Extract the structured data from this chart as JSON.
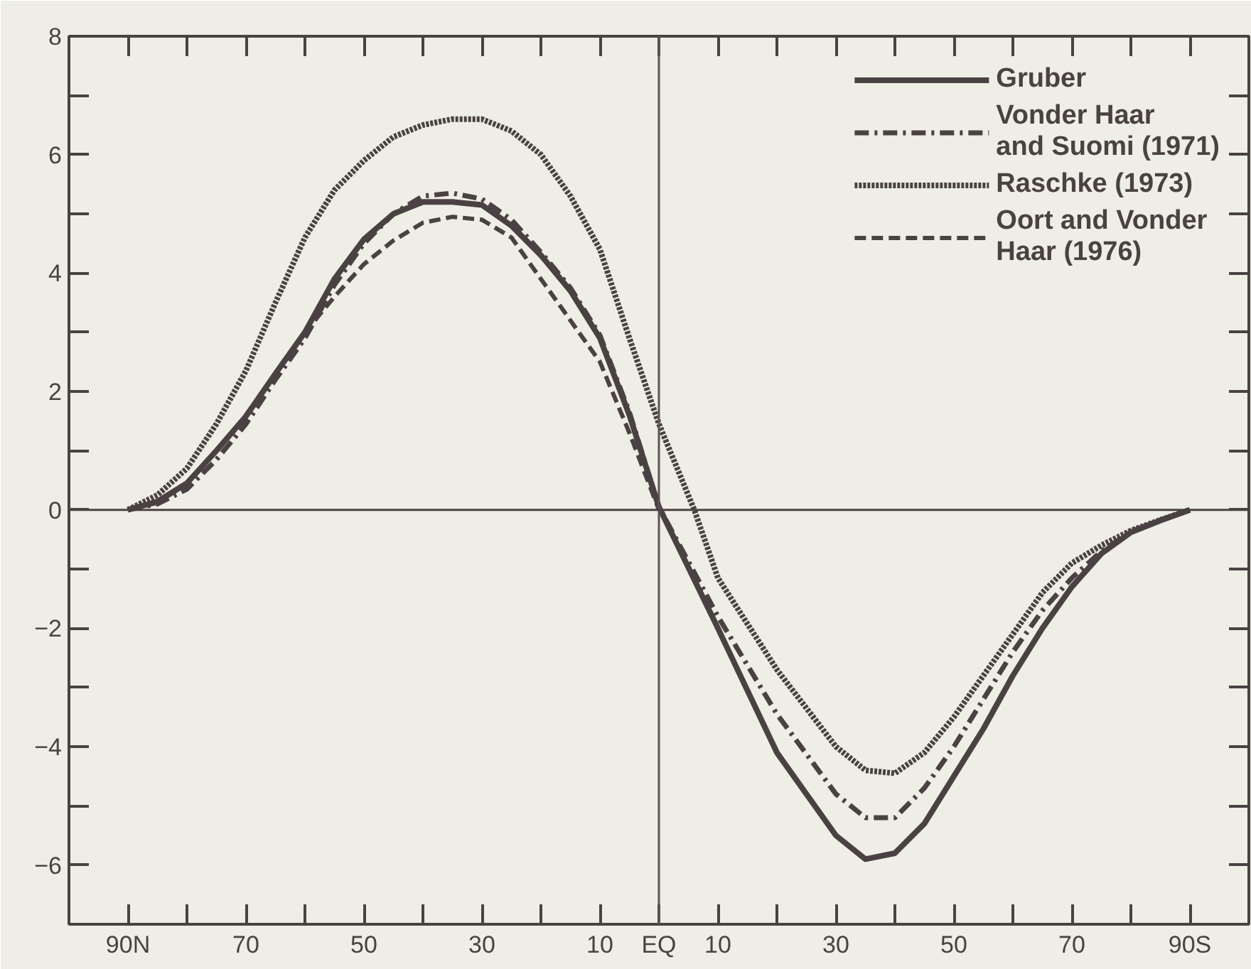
{
  "chart_data": {
    "type": "line",
    "x": [
      90,
      85,
      80,
      75,
      70,
      65,
      60,
      55,
      50,
      45,
      40,
      35,
      30,
      25,
      20,
      15,
      10,
      5,
      0,
      -10,
      -20,
      -30,
      -35,
      -40,
      -45,
      -50,
      -55,
      -60,
      -65,
      -70,
      -75,
      -80,
      -85,
      -90
    ],
    "series": [
      {
        "name": "Gruber",
        "color": "#4a4242",
        "line_style": "solid",
        "values": [
          0,
          0.14,
          0.45,
          1.0,
          1.58,
          2.3,
          3.0,
          3.9,
          4.57,
          5.0,
          5.2,
          5.2,
          5.15,
          4.8,
          4.3,
          3.7,
          2.9,
          1.6,
          0.05,
          -2.0,
          -4.1,
          -5.5,
          -5.9,
          -5.8,
          -5.3,
          -4.5,
          -3.7,
          -2.8,
          -2.0,
          -1.3,
          -0.74,
          -0.38,
          -0.18,
          0
        ]
      },
      {
        "name": "Vonder Haar\nand Suomi (1971)",
        "color": "#4a4242",
        "line_style": "dashdot",
        "values": [
          0,
          0.1,
          0.35,
          0.85,
          1.45,
          2.2,
          2.9,
          3.8,
          4.5,
          5.0,
          5.3,
          5.35,
          5.25,
          4.9,
          4.35,
          3.75,
          2.95,
          1.65,
          0.05,
          -1.8,
          -3.45,
          -4.8,
          -5.2,
          -5.2,
          -4.7,
          -4.0,
          -3.2,
          -2.4,
          -1.7,
          -1.15,
          -0.7,
          -0.37,
          -0.17,
          0
        ]
      },
      {
        "name": "Raschke (1973)",
        "color": "#4a4242",
        "line_style": "dotted",
        "x": [
          90,
          85,
          80,
          75,
          70,
          65,
          60,
          55,
          50,
          45,
          40,
          35,
          30,
          25,
          20,
          15,
          10,
          5,
          0,
          -6,
          -10,
          -20,
          -30,
          -35,
          -40,
          -45,
          -50,
          -55,
          -60,
          -65,
          -70,
          -75,
          -80,
          -85,
          -90
        ],
        "values": [
          0,
          0.25,
          0.7,
          1.45,
          2.35,
          3.5,
          4.6,
          5.4,
          5.9,
          6.3,
          6.5,
          6.6,
          6.6,
          6.4,
          6.0,
          5.3,
          4.4,
          2.9,
          1.45,
          0,
          -1.15,
          -2.7,
          -4.0,
          -4.4,
          -4.45,
          -4.1,
          -3.5,
          -2.8,
          -2.1,
          -1.4,
          -0.9,
          -0.6,
          -0.35,
          -0.17,
          0
        ]
      },
      {
        "name": "Oort and Vonder\nHaar (1976)",
        "color": "#4a4242",
        "line_style": "dashed",
        "x": [
          90,
          85,
          80,
          75,
          70,
          65,
          60,
          55,
          50,
          45,
          40,
          35,
          30,
          25,
          20,
          15,
          10,
          5,
          0
        ],
        "values": [
          0,
          0.12,
          0.45,
          1.0,
          1.6,
          2.3,
          3.0,
          3.6,
          4.15,
          4.55,
          4.85,
          4.95,
          4.9,
          4.6,
          3.9,
          3.2,
          2.5,
          1.3,
          0
        ]
      }
    ],
    "xlim": [
      100,
      -100
    ],
    "xticks": [
      {
        "value": 90,
        "label": "90N"
      },
      {
        "value": 80,
        "label": null
      },
      70,
      {
        "value": 60,
        "label": null
      },
      50,
      {
        "value": 40,
        "label": null
      },
      30,
      {
        "value": 20,
        "label": null
      },
      10,
      {
        "value": 0,
        "label": "EQ"
      },
      {
        "value": -10,
        "label": "10"
      },
      {
        "value": -20,
        "label": null
      },
      {
        "value": -30,
        "label": "30"
      },
      {
        "value": -40,
        "label": null
      },
      {
        "value": -50,
        "label": "50"
      },
      {
        "value": -60,
        "label": null
      },
      {
        "value": -70,
        "label": "70"
      },
      {
        "value": -80,
        "label": null
      },
      {
        "value": -90,
        "label": "90S"
      }
    ],
    "ylim": [
      -7,
      8
    ],
    "yticks": [
      {
        "value": -7,
        "label": null
      },
      {
        "value": -6,
        "label": "−6"
      },
      {
        "value": -5,
        "label": null
      },
      {
        "value": -4,
        "label": "−4"
      },
      {
        "value": -3,
        "label": null
      },
      {
        "value": -2,
        "label": "−2"
      },
      {
        "value": -1,
        "label": null
      },
      0,
      {
        "value": 1,
        "label": null
      },
      2,
      {
        "value": 3,
        "label": null
      },
      4,
      {
        "value": 5,
        "label": null
      },
      6,
      {
        "value": 7,
        "label": null
      },
      8
    ],
    "ref_lines": [
      {
        "axis": "x",
        "value": 0,
        "color": "#5c5454"
      },
      {
        "axis": "y",
        "value": 0,
        "color": "#4a4242"
      }
    ],
    "grid": false,
    "legend": "top right"
  }
}
